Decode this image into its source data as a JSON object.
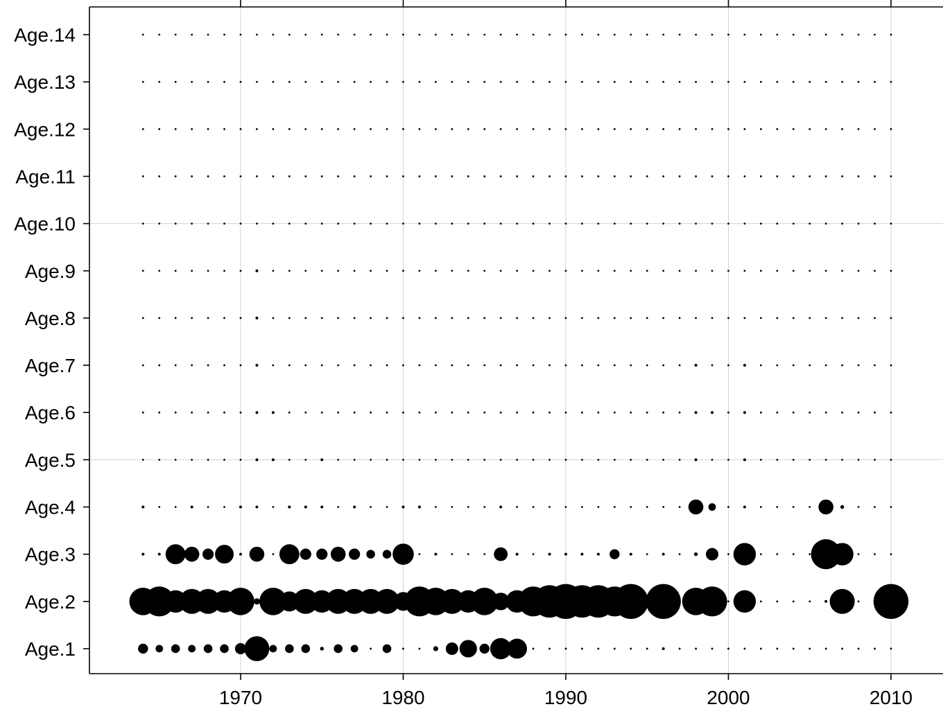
{
  "chart_data": {
    "type": "scatter",
    "title": "",
    "xlabel": "",
    "ylabel": "",
    "xlim": [
      1960.8,
      2013.0
    ],
    "x_ticks": [
      1970,
      1980,
      1990,
      2000,
      2010
    ],
    "x_tick_labels": [
      "1970",
      "1980",
      "1990",
      "2000",
      "2010"
    ],
    "categories": [
      "Age.1",
      "Age.2",
      "Age.3",
      "Age.4",
      "Age.5",
      "Age.6",
      "Age.7",
      "Age.8",
      "Age.9",
      "Age.10",
      "Age.11",
      "Age.12",
      "Age.13",
      "Age.14"
    ],
    "years": [
      1964,
      1965,
      1966,
      1967,
      1968,
      1969,
      1970,
      1971,
      1972,
      1973,
      1974,
      1975,
      1976,
      1977,
      1978,
      1979,
      1980,
      1981,
      1982,
      1983,
      1984,
      1985,
      1986,
      1987,
      1988,
      1989,
      1990,
      1991,
      1992,
      1993,
      1994,
      1995,
      1996,
      1997,
      1998,
      1999,
      2000,
      2001,
      2002,
      2003,
      2004,
      2005,
      2006,
      2007,
      2008,
      2009,
      2010
    ],
    "size_scale_note": "",
    "grid": true,
    "gridlines_x": [
      1970,
      1980,
      1990,
      2000,
      2010
    ],
    "gridlines_y": [
      "Age.5",
      "Age.10"
    ],
    "colors": {
      "points": "#000000",
      "grid": "#d3d3d3",
      "axis": "#000000"
    },
    "series": [
      {
        "name": "",
        "category": "Age.1",
        "values": [
          0.4,
          0.3,
          0.35,
          0.3,
          0.35,
          0.35,
          0.45,
          1.0,
          0.3,
          0.35,
          0.35,
          0.15,
          0.35,
          0.3,
          0.0,
          0.35,
          0.0,
          0.0,
          0.2,
          0.5,
          0.7,
          0.4,
          0.85,
          0.8,
          0,
          0,
          0,
          0,
          0,
          0,
          0,
          0,
          0.05,
          0,
          0,
          0,
          0,
          0,
          0,
          0,
          0,
          0,
          0,
          0,
          0,
          0,
          0
        ]
      },
      {
        "name": "",
        "category": "Age.2",
        "values": [
          1.1,
          1.2,
          0.9,
          1.0,
          1.0,
          0.9,
          1.1,
          0.25,
          1.1,
          0.8,
          1.0,
          0.9,
          1.0,
          1.0,
          1.0,
          1.0,
          0.75,
          1.2,
          1.1,
          1.0,
          0.9,
          1.1,
          0.7,
          0.9,
          1.2,
          1.3,
          1.4,
          1.3,
          1.3,
          1.2,
          1.4,
          0,
          1.4,
          0,
          1.1,
          1.2,
          0,
          0.9,
          0,
          0,
          0,
          0,
          0.1,
          1.0,
          0,
          0,
          1.4
        ]
      },
      {
        "name": "",
        "category": "Age.3",
        "values": [
          0.1,
          0.1,
          0.8,
          0.6,
          0.45,
          0.75,
          0.1,
          0.6,
          0,
          0.8,
          0.45,
          0.45,
          0.6,
          0.45,
          0.35,
          0.35,
          0.85,
          0,
          0.1,
          0,
          0,
          0,
          0.55,
          0.05,
          0,
          0.1,
          0.1,
          0.05,
          0.1,
          0.4,
          0.05,
          0,
          0.1,
          0,
          0.15,
          0.5,
          0,
          0.9,
          0,
          0,
          0,
          0,
          1.2,
          0.9,
          0,
          0,
          0
        ]
      },
      {
        "name": "",
        "category": "Age.4",
        "values": [
          0.1,
          0,
          0,
          0.1,
          0,
          0,
          0.05,
          0.1,
          0,
          0.05,
          0.05,
          0.05,
          0,
          0.05,
          0,
          0,
          0.1,
          0.05,
          0,
          0,
          0,
          0,
          0.05,
          0,
          0,
          0,
          0,
          0,
          0,
          0,
          0,
          0,
          0,
          0,
          0.6,
          0.3,
          0,
          0.1,
          0,
          0,
          0,
          0,
          0.6,
          0.15,
          0,
          0,
          0
        ]
      },
      {
        "name": "",
        "category": "Age.5",
        "values": [
          0,
          0,
          0,
          0,
          0,
          0,
          0,
          0.05,
          0.05,
          0,
          0,
          0.05,
          0,
          0,
          0,
          0,
          0,
          0,
          0,
          0,
          0,
          0,
          0,
          0,
          0,
          0,
          0,
          0,
          0,
          0,
          0,
          0,
          0,
          0,
          0.05,
          0,
          0,
          0.05,
          0,
          0,
          0,
          0,
          0,
          0,
          0,
          0,
          0
        ]
      },
      {
        "name": "",
        "category": "Age.6",
        "values": [
          0,
          0,
          0,
          0,
          0,
          0,
          0,
          0.1,
          0.05,
          0,
          0,
          0,
          0,
          0,
          0,
          0,
          0,
          0,
          0,
          0,
          0,
          0,
          0,
          0,
          0,
          0,
          0,
          0,
          0,
          0,
          0,
          0,
          0,
          0,
          0.05,
          0.05,
          0,
          0.05,
          0,
          0,
          0,
          0,
          0,
          0,
          0,
          0,
          0
        ]
      },
      {
        "name": "",
        "category": "Age.7",
        "values": [
          0,
          0,
          0,
          0,
          0,
          0,
          0,
          0.05,
          0,
          0,
          0,
          0,
          0,
          0,
          0,
          0,
          0,
          0,
          0,
          0,
          0,
          0,
          0,
          0,
          0,
          0,
          0,
          0,
          0,
          0,
          0,
          0,
          0,
          0,
          0.05,
          0,
          0,
          0.02,
          0,
          0,
          0,
          0,
          0,
          0,
          0,
          0,
          0
        ]
      },
      {
        "name": "",
        "category": "Age.8",
        "values": [
          0,
          0,
          0,
          0,
          0,
          0,
          0,
          0.02,
          0,
          0,
          0,
          0,
          0,
          0,
          0,
          0,
          0,
          0,
          0,
          0,
          0,
          0,
          0,
          0,
          0,
          0,
          0,
          0,
          0,
          0,
          0,
          0,
          0,
          0,
          0,
          0,
          0,
          0,
          0,
          0,
          0,
          0,
          0,
          0,
          0,
          0,
          0
        ]
      },
      {
        "name": "",
        "category": "Age.9",
        "values": [
          0,
          0,
          0,
          0,
          0,
          0,
          0,
          0.05,
          0,
          0,
          0,
          0,
          0,
          0,
          0,
          0,
          0,
          0,
          0,
          0,
          0,
          0,
          0,
          0,
          0,
          0,
          0,
          0,
          0,
          0,
          0,
          0,
          0,
          0,
          0,
          0,
          0,
          0,
          0,
          0,
          0,
          0,
          0,
          0,
          0,
          0,
          0
        ]
      },
      {
        "name": "",
        "category": "Age.10",
        "values": [
          0,
          0,
          0,
          0,
          0,
          0,
          0,
          0,
          0,
          0,
          0,
          0,
          0,
          0,
          0,
          0,
          0,
          0,
          0,
          0,
          0,
          0,
          0,
          0,
          0,
          0,
          0,
          0,
          0,
          0,
          0,
          0,
          0,
          0,
          0,
          0,
          0,
          0,
          0,
          0,
          0,
          0,
          0,
          0,
          0,
          0,
          0
        ]
      },
      {
        "name": "",
        "category": "Age.11",
        "values": [
          0,
          0,
          0,
          0,
          0,
          0,
          0,
          0,
          0,
          0,
          0,
          0,
          0,
          0,
          0,
          0,
          0,
          0,
          0,
          0,
          0,
          0,
          0,
          0,
          0,
          0,
          0,
          0,
          0,
          0,
          0,
          0,
          0,
          0,
          0,
          0,
          0,
          0,
          0,
          0,
          0,
          0,
          0,
          0,
          0,
          0,
          0
        ]
      },
      {
        "name": "",
        "category": "Age.12",
        "values": [
          0,
          0,
          0,
          0,
          0,
          0,
          0,
          0,
          0,
          0,
          0,
          0,
          0,
          0,
          0,
          0,
          0,
          0,
          0,
          0,
          0,
          0,
          0,
          0,
          0,
          0,
          0,
          0,
          0,
          0,
          0,
          0,
          0,
          0,
          0,
          0,
          0,
          0,
          0,
          0,
          0,
          0,
          0,
          0,
          0,
          0,
          0
        ]
      },
      {
        "name": "",
        "category": "Age.13",
        "values": [
          0,
          0,
          0,
          0,
          0,
          0,
          0,
          0,
          0,
          0,
          0,
          0,
          0,
          0,
          0,
          0,
          0,
          0,
          0,
          0,
          0,
          0,
          0,
          0,
          0,
          0,
          0,
          0,
          0,
          0,
          0,
          0,
          0,
          0,
          0,
          0,
          0,
          0,
          0,
          0,
          0,
          0,
          0,
          0,
          0,
          0,
          0
        ]
      },
      {
        "name": "",
        "category": "Age.14",
        "values": [
          0,
          0,
          0,
          0,
          0,
          0,
          0,
          0,
          0,
          0,
          0,
          0,
          0,
          0,
          0,
          0,
          0,
          0,
          0,
          0,
          0,
          0,
          0,
          0,
          0,
          0,
          0,
          0,
          0,
          0,
          0,
          0,
          0,
          0,
          0,
          0,
          0,
          0,
          0,
          0,
          0,
          0,
          0,
          0,
          0,
          0,
          0
        ]
      }
    ]
  }
}
